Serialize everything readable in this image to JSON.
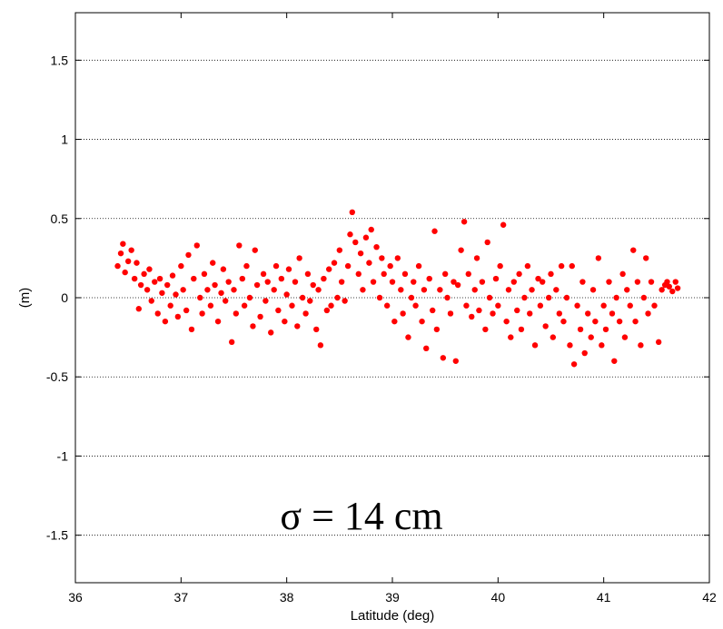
{
  "chart_data": {
    "type": "scatter",
    "title": "",
    "xlabel": "Latitude (deg)",
    "ylabel": "(m)",
    "xlim": [
      36,
      42
    ],
    "ylim": [
      -1.8,
      1.8
    ],
    "xticks": [
      36,
      37,
      38,
      39,
      40,
      41,
      42
    ],
    "yticks": [
      -1.5,
      -1,
      -0.5,
      0,
      0.5,
      1,
      1.5
    ],
    "xtick_labels": [
      "36",
      "37",
      "38",
      "39",
      "40",
      "41",
      "42"
    ],
    "ytick_labels": [
      "-1.5",
      "-1",
      "-0.5",
      "0",
      "0.5",
      "1",
      "1.5"
    ],
    "grid": "horizontal dotted",
    "marker_color": "#ff0000",
    "annotation": "σ = 14 cm",
    "points": [
      [
        36.4,
        0.2
      ],
      [
        36.43,
        0.28
      ],
      [
        36.45,
        0.34
      ],
      [
        36.47,
        0.16
      ],
      [
        36.5,
        0.23
      ],
      [
        36.53,
        0.3
      ],
      [
        36.56,
        0.12
      ],
      [
        36.58,
        0.22
      ],
      [
        36.6,
        -0.07
      ],
      [
        36.62,
        0.08
      ],
      [
        36.65,
        0.15
      ],
      [
        36.68,
        0.05
      ],
      [
        36.7,
        0.18
      ],
      [
        36.72,
        -0.02
      ],
      [
        36.75,
        0.1
      ],
      [
        36.78,
        -0.1
      ],
      [
        36.8,
        0.12
      ],
      [
        36.82,
        0.03
      ],
      [
        36.85,
        -0.15
      ],
      [
        36.87,
        0.08
      ],
      [
        36.9,
        -0.05
      ],
      [
        36.92,
        0.14
      ],
      [
        36.95,
        0.02
      ],
      [
        36.97,
        -0.12
      ],
      [
        37.0,
        0.2
      ],
      [
        37.02,
        0.05
      ],
      [
        37.05,
        -0.08
      ],
      [
        37.07,
        0.27
      ],
      [
        37.1,
        -0.2
      ],
      [
        37.12,
        0.12
      ],
      [
        37.15,
        0.33
      ],
      [
        37.18,
        0.0
      ],
      [
        37.2,
        -0.1
      ],
      [
        37.22,
        0.15
      ],
      [
        37.25,
        0.05
      ],
      [
        37.28,
        -0.05
      ],
      [
        37.3,
        0.22
      ],
      [
        37.32,
        0.08
      ],
      [
        37.35,
        -0.15
      ],
      [
        37.38,
        0.03
      ],
      [
        37.4,
        0.18
      ],
      [
        37.42,
        -0.02
      ],
      [
        37.45,
        0.1
      ],
      [
        37.48,
        -0.28
      ],
      [
        37.5,
        0.05
      ],
      [
        37.52,
        -0.1
      ],
      [
        37.55,
        0.33
      ],
      [
        37.58,
        0.12
      ],
      [
        37.6,
        -0.05
      ],
      [
        37.62,
        0.2
      ],
      [
        37.65,
        0.0
      ],
      [
        37.68,
        -0.18
      ],
      [
        37.7,
        0.3
      ],
      [
        37.72,
        0.08
      ],
      [
        37.75,
        -0.12
      ],
      [
        37.78,
        0.15
      ],
      [
        37.8,
        -0.02
      ],
      [
        37.82,
        0.1
      ],
      [
        37.85,
        -0.22
      ],
      [
        37.88,
        0.05
      ],
      [
        37.9,
        0.2
      ],
      [
        37.92,
        -0.08
      ],
      [
        37.95,
        0.12
      ],
      [
        37.98,
        -0.15
      ],
      [
        38.0,
        0.02
      ],
      [
        38.02,
        0.18
      ],
      [
        38.05,
        -0.05
      ],
      [
        38.08,
        0.1
      ],
      [
        38.1,
        -0.18
      ],
      [
        38.12,
        0.25
      ],
      [
        38.15,
        0.0
      ],
      [
        38.18,
        -0.1
      ],
      [
        38.2,
        0.15
      ],
      [
        38.22,
        -0.02
      ],
      [
        38.25,
        0.08
      ],
      [
        38.28,
        -0.2
      ],
      [
        38.3,
        0.05
      ],
      [
        38.32,
        -0.3
      ],
      [
        38.35,
        0.12
      ],
      [
        38.38,
        -0.08
      ],
      [
        38.4,
        0.18
      ],
      [
        38.42,
        -0.05
      ],
      [
        38.45,
        0.22
      ],
      [
        38.48,
        0.0
      ],
      [
        38.5,
        0.3
      ],
      [
        38.52,
        0.1
      ],
      [
        38.55,
        -0.02
      ],
      [
        38.58,
        0.2
      ],
      [
        38.6,
        0.4
      ],
      [
        38.62,
        0.54
      ],
      [
        38.65,
        0.35
      ],
      [
        38.68,
        0.15
      ],
      [
        38.7,
        0.28
      ],
      [
        38.72,
        0.05
      ],
      [
        38.75,
        0.38
      ],
      [
        38.78,
        0.22
      ],
      [
        38.8,
        0.43
      ],
      [
        38.82,
        0.1
      ],
      [
        38.85,
        0.32
      ],
      [
        38.88,
        0.0
      ],
      [
        38.9,
        0.25
      ],
      [
        38.92,
        0.15
      ],
      [
        38.95,
        -0.05
      ],
      [
        38.98,
        0.2
      ],
      [
        39.0,
        0.1
      ],
      [
        39.02,
        -0.15
      ],
      [
        39.05,
        0.25
      ],
      [
        39.08,
        0.05
      ],
      [
        39.1,
        -0.1
      ],
      [
        39.12,
        0.15
      ],
      [
        39.15,
        -0.25
      ],
      [
        39.18,
        0.0
      ],
      [
        39.2,
        0.1
      ],
      [
        39.22,
        -0.05
      ],
      [
        39.25,
        0.2
      ],
      [
        39.28,
        -0.15
      ],
      [
        39.3,
        0.05
      ],
      [
        39.32,
        -0.32
      ],
      [
        39.35,
        0.12
      ],
      [
        39.38,
        -0.08
      ],
      [
        39.4,
        0.42
      ],
      [
        39.42,
        -0.2
      ],
      [
        39.45,
        0.05
      ],
      [
        39.48,
        -0.38
      ],
      [
        39.5,
        0.15
      ],
      [
        39.52,
        0.0
      ],
      [
        39.55,
        -0.1
      ],
      [
        39.58,
        0.1
      ],
      [
        39.6,
        -0.4
      ],
      [
        39.62,
        0.08
      ],
      [
        39.65,
        0.3
      ],
      [
        39.68,
        0.48
      ],
      [
        39.7,
        -0.05
      ],
      [
        39.72,
        0.15
      ],
      [
        39.75,
        -0.12
      ],
      [
        39.78,
        0.05
      ],
      [
        39.8,
        0.25
      ],
      [
        39.82,
        -0.08
      ],
      [
        39.85,
        0.1
      ],
      [
        39.88,
        -0.2
      ],
      [
        39.9,
        0.35
      ],
      [
        39.92,
        0.0
      ],
      [
        39.95,
        -0.1
      ],
      [
        39.98,
        0.12
      ],
      [
        40.0,
        -0.05
      ],
      [
        40.02,
        0.2
      ],
      [
        40.05,
        0.46
      ],
      [
        40.08,
        -0.15
      ],
      [
        40.1,
        0.05
      ],
      [
        40.12,
        -0.25
      ],
      [
        40.15,
        0.1
      ],
      [
        40.18,
        -0.08
      ],
      [
        40.2,
        0.15
      ],
      [
        40.22,
        -0.2
      ],
      [
        40.25,
        0.0
      ],
      [
        40.28,
        0.2
      ],
      [
        40.3,
        -0.1
      ],
      [
        40.32,
        0.05
      ],
      [
        40.35,
        -0.3
      ],
      [
        40.38,
        0.12
      ],
      [
        40.4,
        -0.05
      ],
      [
        40.42,
        0.1
      ],
      [
        40.45,
        -0.18
      ],
      [
        40.48,
        0.0
      ],
      [
        40.5,
        0.15
      ],
      [
        40.52,
        -0.25
      ],
      [
        40.55,
        0.05
      ],
      [
        40.58,
        -0.1
      ],
      [
        40.6,
        0.2
      ],
      [
        40.62,
        -0.15
      ],
      [
        40.65,
        0.0
      ],
      [
        40.68,
        -0.3
      ],
      [
        40.7,
        0.2
      ],
      [
        40.72,
        -0.42
      ],
      [
        40.75,
        -0.05
      ],
      [
        40.78,
        -0.2
      ],
      [
        40.8,
        0.1
      ],
      [
        40.82,
        -0.35
      ],
      [
        40.85,
        -0.1
      ],
      [
        40.88,
        -0.25
      ],
      [
        40.9,
        0.05
      ],
      [
        40.92,
        -0.15
      ],
      [
        40.95,
        0.25
      ],
      [
        40.98,
        -0.3
      ],
      [
        41.0,
        -0.05
      ],
      [
        41.02,
        -0.2
      ],
      [
        41.05,
        0.1
      ],
      [
        41.08,
        -0.1
      ],
      [
        41.1,
        -0.4
      ],
      [
        41.12,
        0.0
      ],
      [
        41.15,
        -0.15
      ],
      [
        41.18,
        0.15
      ],
      [
        41.2,
        -0.25
      ],
      [
        41.22,
        0.05
      ],
      [
        41.25,
        -0.05
      ],
      [
        41.28,
        0.3
      ],
      [
        41.3,
        -0.15
      ],
      [
        41.32,
        0.1
      ],
      [
        41.35,
        -0.3
      ],
      [
        41.38,
        0.0
      ],
      [
        41.4,
        0.25
      ],
      [
        41.42,
        -0.1
      ],
      [
        41.45,
        0.1
      ],
      [
        41.48,
        -0.05
      ],
      [
        41.52,
        -0.28
      ],
      [
        41.55,
        0.05
      ],
      [
        41.58,
        0.08
      ],
      [
        41.6,
        0.1
      ],
      [
        41.62,
        0.07
      ],
      [
        41.65,
        0.04
      ],
      [
        41.68,
        0.1
      ],
      [
        41.7,
        0.06
      ]
    ]
  }
}
